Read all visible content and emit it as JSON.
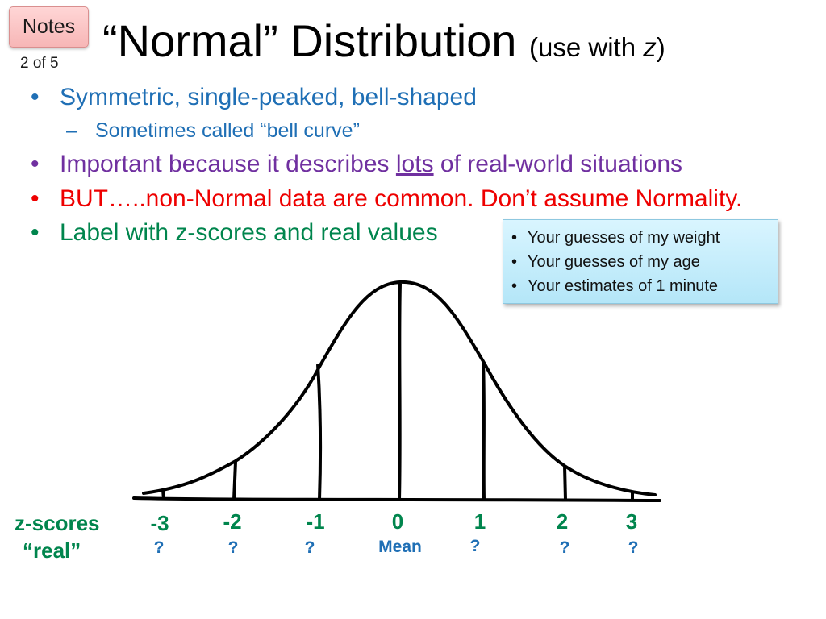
{
  "badge": {
    "label": "Notes",
    "page": "2 of 5"
  },
  "title": {
    "main": "“Normal” Distribution",
    "sub_open": "(use with ",
    "sub_var": "z",
    "sub_close": ")"
  },
  "bullets": {
    "b1": "Symmetric, single-peaked, bell-shaped",
    "b1_sub": "Sometimes called “bell curve”",
    "b2_pre": "Important because it describes ",
    "b2_u": "lots",
    "b2_post": " of real-world situations",
    "b3": "BUT…..non-Normal data are common. Don’t assume Normality.",
    "b4": "Label with z-scores and real values"
  },
  "callout": {
    "items": [
      "Your guesses of my weight",
      "Your guesses of my age",
      "Your estimates of 1 minute"
    ]
  },
  "axis": {
    "z_heading": "z-scores",
    "real_heading": "“real”",
    "z_ticks": [
      "-3",
      "-2",
      "-1",
      "0",
      "1",
      "2",
      "3"
    ],
    "real_ticks": [
      "?",
      "?",
      "?",
      "Mean",
      "?",
      "?",
      "?"
    ]
  },
  "colors": {
    "blue": "#1f6fb5",
    "purple": "#7030a0",
    "red": "#ee0000",
    "green": "#00854d"
  }
}
